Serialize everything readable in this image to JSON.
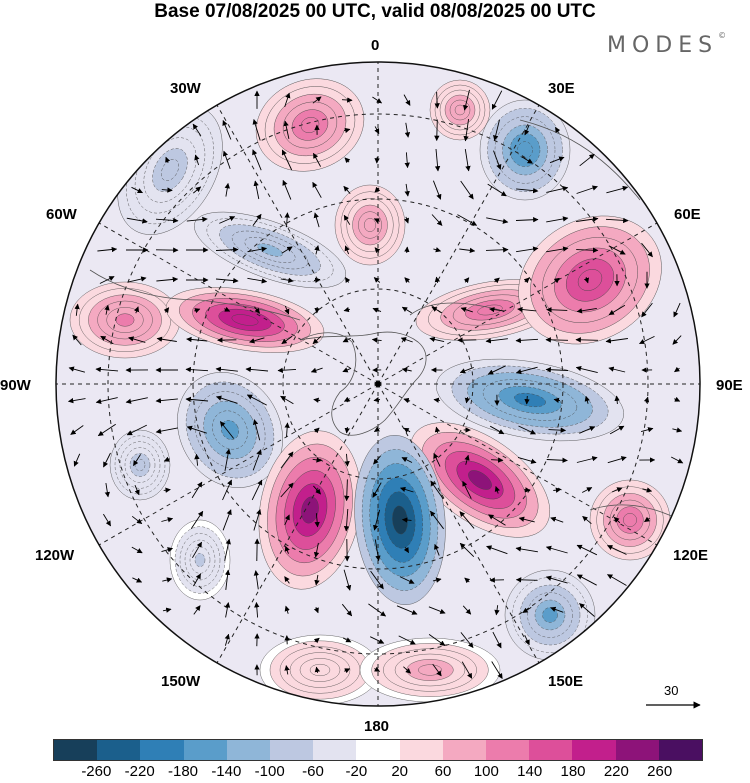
{
  "header": {
    "title": "Base 07/08/2025 00 UTC, valid 08/08/2025 00 UTC",
    "brand": "MODES",
    "brand_mark": "©"
  },
  "map": {
    "projection": "polar-stereographic-south",
    "longitude_labels": {
      "top": "0",
      "top_left": "30W",
      "top_right": "30E",
      "upper_left": "60W",
      "upper_right": "60E",
      "left": "90W",
      "right": "90E",
      "lower_left": "120W",
      "lower_right": "120E",
      "bottom_left": "150W",
      "bottom_right": "150E",
      "bottom": "180"
    },
    "reference_vector": "30",
    "anomaly_centers": [
      {
        "sign": "positive",
        "value": 120
      },
      {
        "sign": "negative",
        "value": -80
      },
      {
        "sign": "negative",
        "value": -110
      },
      {
        "sign": "positive",
        "value": 100
      },
      {
        "sign": "positive",
        "value": 110
      },
      {
        "sign": "negative",
        "value": -80
      },
      {
        "sign": "positive",
        "value": 220
      },
      {
        "sign": "negative",
        "value": -170
      },
      {
        "sign": "positive",
        "value": 140
      },
      {
        "sign": "positive",
        "value": 170
      },
      {
        "sign": "positive",
        "value": 140
      },
      {
        "sign": "negative",
        "value": -190
      },
      {
        "sign": "positive",
        "value": 240
      },
      {
        "sign": "negative",
        "value": -160
      },
      {
        "sign": "positive",
        "value": 240
      },
      {
        "sign": "negative",
        "value": -260
      },
      {
        "sign": "positive",
        "value": 60
      },
      {
        "sign": "negative",
        "value": -60
      },
      {
        "sign": "negative",
        "value": -140
      },
      {
        "sign": "positive",
        "value": 80
      },
      {
        "sign": "positive",
        "value": 100
      }
    ]
  },
  "colorbar": {
    "ticks": [
      "-260",
      "-220",
      "-180",
      "-140",
      "-100",
      "-60",
      "-20",
      "20",
      "60",
      "100",
      "140",
      "180",
      "220",
      "260"
    ],
    "colors": [
      "#173f5a",
      "#1b5f8c",
      "#2f7fb6",
      "#5a9dca",
      "#8fb6d8",
      "#bdc8e1",
      "#e3e3f0",
      "#ffffff",
      "#fbd9df",
      "#f4a9c1",
      "#ec7cac",
      "#dd4f9a",
      "#c21f8c",
      "#8d1379",
      "#4a0f61"
    ]
  }
}
